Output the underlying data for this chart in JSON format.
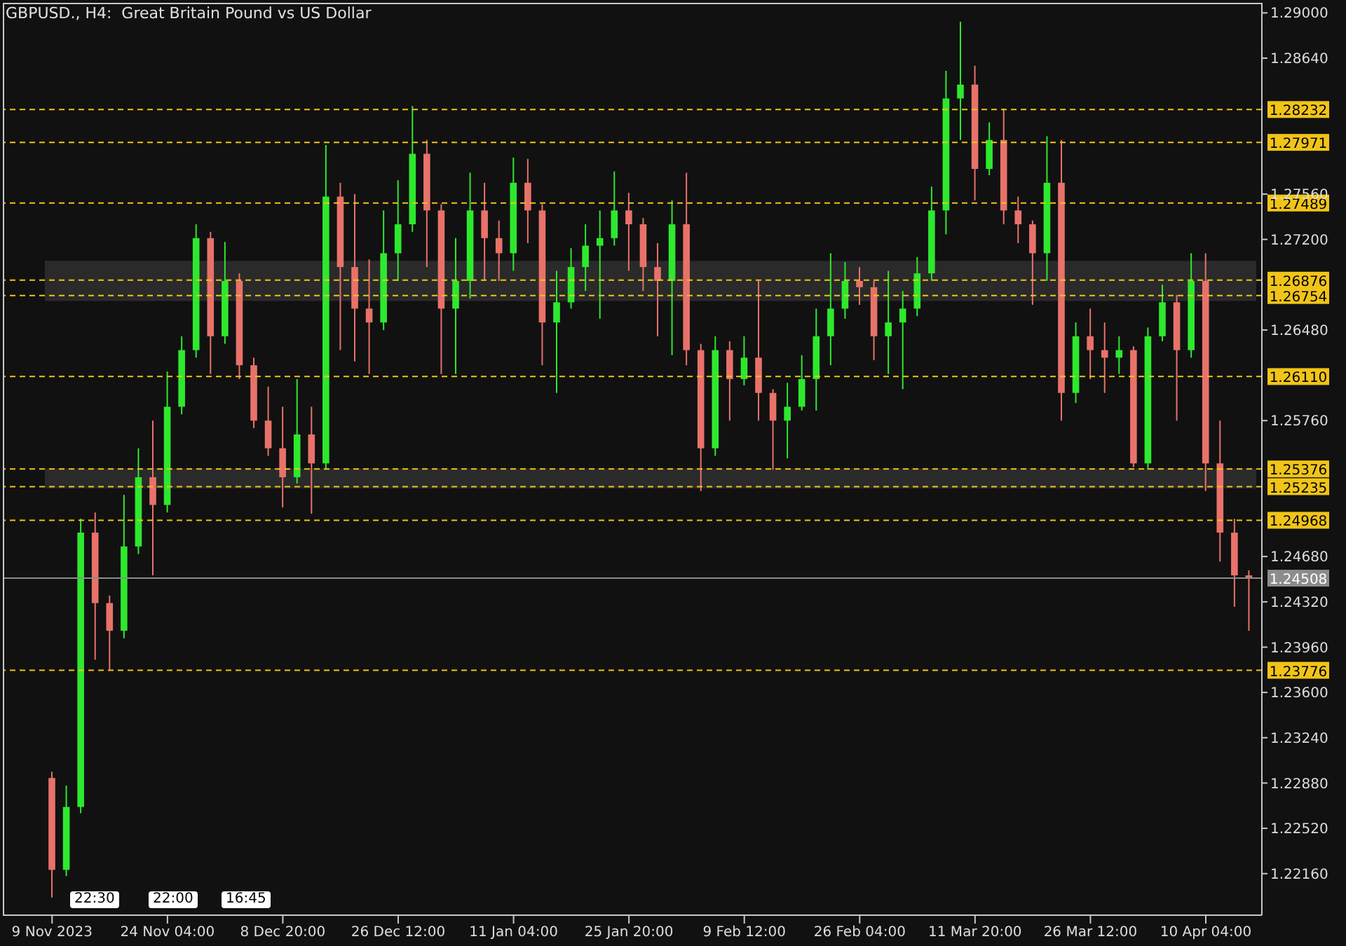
{
  "chart_data": {
    "type": "candlestick",
    "title": "GBPUSD., H4:  Great Britain Pound vs US Dollar",
    "categories": [
      "9 Nov 2023",
      null,
      null,
      null,
      null,
      null,
      null,
      null,
      "24 Nov 04:00",
      null,
      null,
      null,
      null,
      null,
      null,
      null,
      "8 Dec 20:00",
      null,
      null,
      null,
      null,
      null,
      null,
      null,
      "26 Dec 12:00",
      null,
      null,
      null,
      null,
      null,
      null,
      null,
      "11 Jan 04:00",
      null,
      null,
      null,
      null,
      null,
      null,
      null,
      "25 Jan 20:00",
      null,
      null,
      null,
      null,
      null,
      null,
      null,
      "9 Feb 12:00",
      null,
      null,
      null,
      null,
      null,
      null,
      null,
      "26 Feb 04:00",
      null,
      null,
      null,
      null,
      null,
      null,
      null,
      "11 Mar 20:00",
      null,
      null,
      null,
      null,
      null,
      null,
      null,
      "26 Mar 12:00",
      null,
      null,
      null,
      null,
      null,
      null,
      null,
      "10 Apr 04:00",
      null,
      null,
      null
    ],
    "ohlc": [
      [
        1.2292,
        1.2297,
        1.2197,
        1.2219
      ],
      [
        1.2219,
        1.2286,
        1.2214,
        1.2269
      ],
      [
        1.2269,
        1.2498,
        1.2264,
        1.2487
      ],
      [
        1.2487,
        1.2503,
        1.2386,
        1.2431
      ],
      [
        1.2431,
        1.2437,
        1.2378,
        1.2409
      ],
      [
        1.2409,
        1.2517,
        1.2403,
        1.2476
      ],
      [
        1.2476,
        1.2554,
        1.247,
        1.2531
      ],
      [
        1.2531,
        1.2576,
        1.2453,
        1.2509
      ],
      [
        1.2509,
        1.2615,
        1.2503,
        1.2587
      ],
      [
        1.2587,
        1.2643,
        1.2581,
        1.2632
      ],
      [
        1.2632,
        1.2732,
        1.2626,
        1.2721
      ],
      [
        1.2721,
        1.2726,
        1.2613,
        1.2643
      ],
      [
        1.2643,
        1.2718,
        1.2637,
        1.2687
      ],
      [
        1.2687,
        1.2693,
        1.2609,
        1.262
      ],
      [
        1.262,
        1.2626,
        1.257,
        1.2576
      ],
      [
        1.2576,
        1.2603,
        1.2548,
        1.2554
      ],
      [
        1.2554,
        1.2587,
        1.2507,
        1.2531
      ],
      [
        1.2531,
        1.2609,
        1.2526,
        1.2565
      ],
      [
        1.2565,
        1.2587,
        1.2502,
        1.2542
      ],
      [
        1.2542,
        1.2795,
        1.2537,
        1.2754
      ],
      [
        1.2754,
        1.2765,
        1.2632,
        1.2698
      ],
      [
        1.2698,
        1.2756,
        1.2623,
        1.2665
      ],
      [
        1.2665,
        1.2704,
        1.2613,
        1.2654
      ],
      [
        1.2654,
        1.2743,
        1.2648,
        1.2709
      ],
      [
        1.2709,
        1.2767,
        1.2687,
        1.2732
      ],
      [
        1.2732,
        1.2826,
        1.2726,
        1.2788
      ],
      [
        1.2788,
        1.2799,
        1.2698,
        1.2743
      ],
      [
        1.2743,
        1.2748,
        1.2613,
        1.2665
      ],
      [
        1.2665,
        1.2721,
        1.2613,
        1.2687
      ],
      [
        1.2687,
        1.2773,
        1.2673,
        1.2743
      ],
      [
        1.2743,
        1.2765,
        1.2687,
        1.2721
      ],
      [
        1.2721,
        1.2735,
        1.2687,
        1.2709
      ],
      [
        1.2709,
        1.2785,
        1.2695,
        1.2765
      ],
      [
        1.2765,
        1.2784,
        1.2717,
        1.2743
      ],
      [
        1.2743,
        1.2748,
        1.262,
        1.2654
      ],
      [
        1.2654,
        1.2695,
        1.2598,
        1.267
      ],
      [
        1.267,
        1.2713,
        1.2665,
        1.2698
      ],
      [
        1.2698,
        1.2732,
        1.2679,
        1.2715
      ],
      [
        1.2715,
        1.2743,
        1.2657,
        1.2721
      ],
      [
        1.2721,
        1.2774,
        1.2715,
        1.2743
      ],
      [
        1.2743,
        1.2757,
        1.2695,
        1.2732
      ],
      [
        1.2732,
        1.2737,
        1.2679,
        1.2698
      ],
      [
        1.2698,
        1.2717,
        1.2643,
        1.2687
      ],
      [
        1.2687,
        1.2751,
        1.2628,
        1.2732
      ],
      [
        1.2732,
        1.2773,
        1.262,
        1.2632
      ],
      [
        1.2632,
        1.2637,
        1.252,
        1.2554
      ],
      [
        1.2554,
        1.2643,
        1.2548,
        1.2632
      ],
      [
        1.2632,
        1.2639,
        1.2576,
        1.2609
      ],
      [
        1.2609,
        1.2643,
        1.2604,
        1.2626
      ],
      [
        1.2626,
        1.2687,
        1.2576,
        1.2598
      ],
      [
        1.2598,
        1.2601,
        1.2537,
        1.2576
      ],
      [
        1.2576,
        1.2606,
        1.2546,
        1.2587
      ],
      [
        1.2587,
        1.2628,
        1.2584,
        1.2609
      ],
      [
        1.2609,
        1.2665,
        1.2584,
        1.2643
      ],
      [
        1.2643,
        1.2709,
        1.262,
        1.2665
      ],
      [
        1.2665,
        1.2702,
        1.2657,
        1.2687
      ],
      [
        1.2687,
        1.2698,
        1.2668,
        1.2682
      ],
      [
        1.2682,
        1.2687,
        1.2624,
        1.2643
      ],
      [
        1.2643,
        1.2695,
        1.2613,
        1.2654
      ],
      [
        1.2654,
        1.2679,
        1.2601,
        1.2665
      ],
      [
        1.2665,
        1.2706,
        1.2659,
        1.2693
      ],
      [
        1.2693,
        1.2762,
        1.2687,
        1.2743
      ],
      [
        1.2743,
        1.2854,
        1.2724,
        1.2832
      ],
      [
        1.2832,
        1.2893,
        1.2799,
        1.2843
      ],
      [
        1.2843,
        1.2858,
        1.2751,
        1.2776
      ],
      [
        1.2776,
        1.2813,
        1.2771,
        1.2799
      ],
      [
        1.2799,
        1.2824,
        1.2732,
        1.2743
      ],
      [
        1.2743,
        1.2754,
        1.2717,
        1.2732
      ],
      [
        1.2732,
        1.2735,
        1.2668,
        1.2709
      ],
      [
        1.2709,
        1.2802,
        1.2687,
        1.2765
      ],
      [
        1.2765,
        1.2799,
        1.2576,
        1.2598
      ],
      [
        1.2598,
        1.2654,
        1.259,
        1.2643
      ],
      [
        1.2643,
        1.2665,
        1.2609,
        1.2632
      ],
      [
        1.2632,
        1.2654,
        1.2598,
        1.2626
      ],
      [
        1.2626,
        1.2643,
        1.2613,
        1.2632
      ],
      [
        1.2632,
        1.2635,
        1.2539,
        1.2542
      ],
      [
        1.2542,
        1.265,
        1.2537,
        1.2643
      ],
      [
        1.2643,
        1.2684,
        1.2639,
        1.267
      ],
      [
        1.267,
        1.2676,
        1.2576,
        1.2632
      ],
      [
        1.2632,
        1.2709,
        1.2626,
        1.2687
      ],
      [
        1.2687,
        1.2709,
        1.252,
        1.2542
      ],
      [
        1.2542,
        1.2576,
        1.2464,
        1.2487
      ],
      [
        1.2487,
        1.2498,
        1.2428,
        1.2453
      ],
      [
        1.2453,
        1.2457,
        1.2409,
        1.2451
      ]
    ],
    "colors": [
      "#e8726a",
      "#2ee82e",
      "#2ee82e",
      "#e8726a",
      "#e8726a",
      "#2ee82e",
      "#2ee82e",
      "#e8726a",
      "#2ee82e",
      "#2ee82e",
      "#2ee82e",
      "#e8726a",
      "#2ee82e",
      "#e8726a",
      "#e8726a",
      "#e8726a",
      "#e8726a",
      "#2ee82e",
      "#e8726a",
      "#2ee82e",
      "#e8726a",
      "#e8726a",
      "#e8726a",
      "#2ee82e",
      "#2ee82e",
      "#2ee82e",
      "#e8726a",
      "#e8726a",
      "#2ee82e",
      "#2ee82e",
      "#e8726a",
      "#e8726a",
      "#2ee82e",
      "#e8726a",
      "#e8726a",
      "#2ee82e",
      "#2ee82e",
      "#2ee82e",
      "#2ee82e",
      "#2ee82e",
      "#e8726a",
      "#e8726a",
      "#e8726a",
      "#2ee82e",
      "#e8726a",
      "#e8726a",
      "#2ee82e",
      "#e8726a",
      "#2ee82e",
      "#e8726a",
      "#e8726a",
      "#2ee82e",
      "#2ee82e",
      "#2ee82e",
      "#2ee82e",
      "#2ee82e",
      "#e8726a",
      "#e8726a",
      "#2ee82e",
      "#2ee82e",
      "#2ee82e",
      "#2ee82e",
      "#2ee82e",
      "#2ee82e",
      "#e8726a",
      "#2ee82e",
      "#e8726a",
      "#e8726a",
      "#e8726a",
      "#2ee82e",
      "#e8726a",
      "#2ee82e",
      "#e8726a",
      "#e8726a",
      "#2ee82e",
      "#e8726a",
      "#2ee82e",
      "#2ee82e",
      "#e8726a",
      "#2ee82e",
      "#e8726a",
      "#e8726a",
      "#e8726a",
      "#e8726a"
    ],
    "ylim": [
      1.2183,
      1.2908
    ],
    "yticks": [
      {
        "value": 1.29,
        "label": "1.29000"
      },
      {
        "value": 1.2864,
        "label": "1.28640"
      },
      {
        "value": 1.2756,
        "label": "1.27560"
      },
      {
        "value": 1.272,
        "label": "1.27200"
      },
      {
        "value": 1.2648,
        "label": "1.26480"
      },
      {
        "value": 1.2576,
        "label": "1.25760"
      },
      {
        "value": 1.2468,
        "label": "1.24680"
      },
      {
        "value": 1.2432,
        "label": "1.24320"
      },
      {
        "value": 1.2396,
        "label": "1.23960"
      },
      {
        "value": 1.236,
        "label": "1.23600"
      },
      {
        "value": 1.2324,
        "label": "1.23240"
      },
      {
        "value": 1.2288,
        "label": "1.22880"
      },
      {
        "value": 1.2252,
        "label": "1.22520"
      },
      {
        "value": 1.2216,
        "label": "1.22160"
      }
    ],
    "ref_lines": [
      {
        "axis": "y",
        "value": 1.28232,
        "label": "1.28232",
        "color": "#f0c419",
        "line_style": "dashed"
      },
      {
        "axis": "y",
        "value": 1.27971,
        "label": "1.27971",
        "color": "#f0c419",
        "line_style": "dashed"
      },
      {
        "axis": "y",
        "value": 1.27489,
        "label": "1.27489",
        "color": "#f0c419",
        "line_style": "dashed"
      },
      {
        "axis": "y",
        "value": 1.26876,
        "label": "1.26876",
        "color": "#f0c419",
        "line_style": "dashed"
      },
      {
        "axis": "y",
        "value": 1.26754,
        "label": "1.26754",
        "color": "#f0c419",
        "line_style": "dashed"
      },
      {
        "axis": "y",
        "value": 1.2611,
        "label": "1.26110",
        "color": "#f0c419",
        "line_style": "dashed"
      },
      {
        "axis": "y",
        "value": 1.25376,
        "label": "1.25376",
        "color": "#f0c419",
        "line_style": "dashed"
      },
      {
        "axis": "y",
        "value": 1.25235,
        "label": "1.25235",
        "color": "#f0c419",
        "line_style": "dashed"
      },
      {
        "axis": "y",
        "value": 1.24968,
        "label": "1.24968",
        "color": "#f0c419",
        "line_style": "dashed"
      },
      {
        "axis": "y",
        "value": 1.23776,
        "label": "1.23776",
        "color": "#f0c419",
        "line_style": "dashed"
      },
      {
        "axis": "y",
        "value": 1.24508,
        "label": "1.24508",
        "color": "#8c8c8c",
        "line_style": "solid"
      }
    ],
    "bands": [
      {
        "axis": "y",
        "from": 1.2671,
        "to": 1.2703,
        "color": "#2a2a2a"
      },
      {
        "axis": "y",
        "from": 1.2522,
        "to": 1.2538,
        "color": "#2a2a2a"
      }
    ],
    "annotations": [
      "22:30",
      "22:00",
      "16:45"
    ]
  }
}
